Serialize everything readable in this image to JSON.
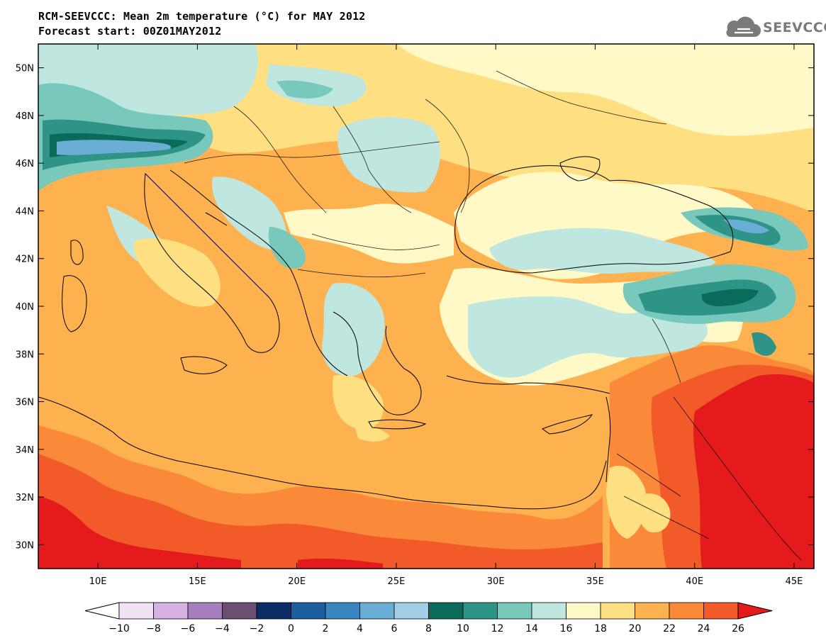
{
  "title_line1": "RCM-SEEVCCC: Mean 2m temperature (°C) for MAY 2012",
  "title_line2": "Forecast start: 00Z01MAY2012",
  "logo_text": "SEEVCCC",
  "logo_icon": "cloud-icon",
  "map": {
    "lon_range": [
      7,
      46
    ],
    "lat_range": [
      29,
      51
    ],
    "x_ticks": [
      {
        "lon": 10,
        "label": "10E"
      },
      {
        "lon": 15,
        "label": "15E"
      },
      {
        "lon": 20,
        "label": "20E"
      },
      {
        "lon": 25,
        "label": "25E"
      },
      {
        "lon": 30,
        "label": "30E"
      },
      {
        "lon": 35,
        "label": "35E"
      },
      {
        "lon": 40,
        "label": "40E"
      },
      {
        "lon": 45,
        "label": "45E"
      }
    ],
    "y_ticks": [
      {
        "lat": 50,
        "label": "50N"
      },
      {
        "lat": 48,
        "label": "48N"
      },
      {
        "lat": 46,
        "label": "46N"
      },
      {
        "lat": 44,
        "label": "44N"
      },
      {
        "lat": 42,
        "label": "42N"
      },
      {
        "lat": 40,
        "label": "40N"
      },
      {
        "lat": 38,
        "label": "38N"
      },
      {
        "lat": 36,
        "label": "36N"
      },
      {
        "lat": 34,
        "label": "34N"
      },
      {
        "lat": 32,
        "label": "32N"
      },
      {
        "lat": 30,
        "label": "30N"
      }
    ]
  },
  "colorbar": {
    "labels": [
      "-10",
      "-8",
      "-6",
      "-4",
      "-2",
      "0",
      "2",
      "4",
      "6",
      "8",
      "10",
      "12",
      "14",
      "16",
      "18",
      "20",
      "22",
      "24",
      "26"
    ],
    "under_color": "#ffffff",
    "over_color": "#e41a1c",
    "colors": [
      "#f1e2f5",
      "#d6b2e2",
      "#a77fc0",
      "#6a4f73",
      "#0c2c66",
      "#1d5ea0",
      "#3a86c0",
      "#6aaed6",
      "#a3cfe6",
      "#0a6b5a",
      "#2f9488",
      "#78c9bc",
      "#bfe6df",
      "#fff9c8",
      "#fedf82",
      "#fdb14f",
      "#fa8a3a",
      "#f25a2a"
    ]
  },
  "field_colors": {
    "t8_10": "#0a6b5a",
    "t10_12": "#2f9488",
    "t12_14": "#78c9bc",
    "t14_16": "#bfe6df",
    "t16_18": "#fff9c8",
    "t18_20": "#fedf82",
    "t20_22": "#fdb14f",
    "t22_24": "#fa8a3a",
    "t24_26": "#f25a2a",
    "t26_plus": "#e41a1c",
    "t6_8": "#a3cfe6",
    "t4_6": "#6aaed6"
  }
}
